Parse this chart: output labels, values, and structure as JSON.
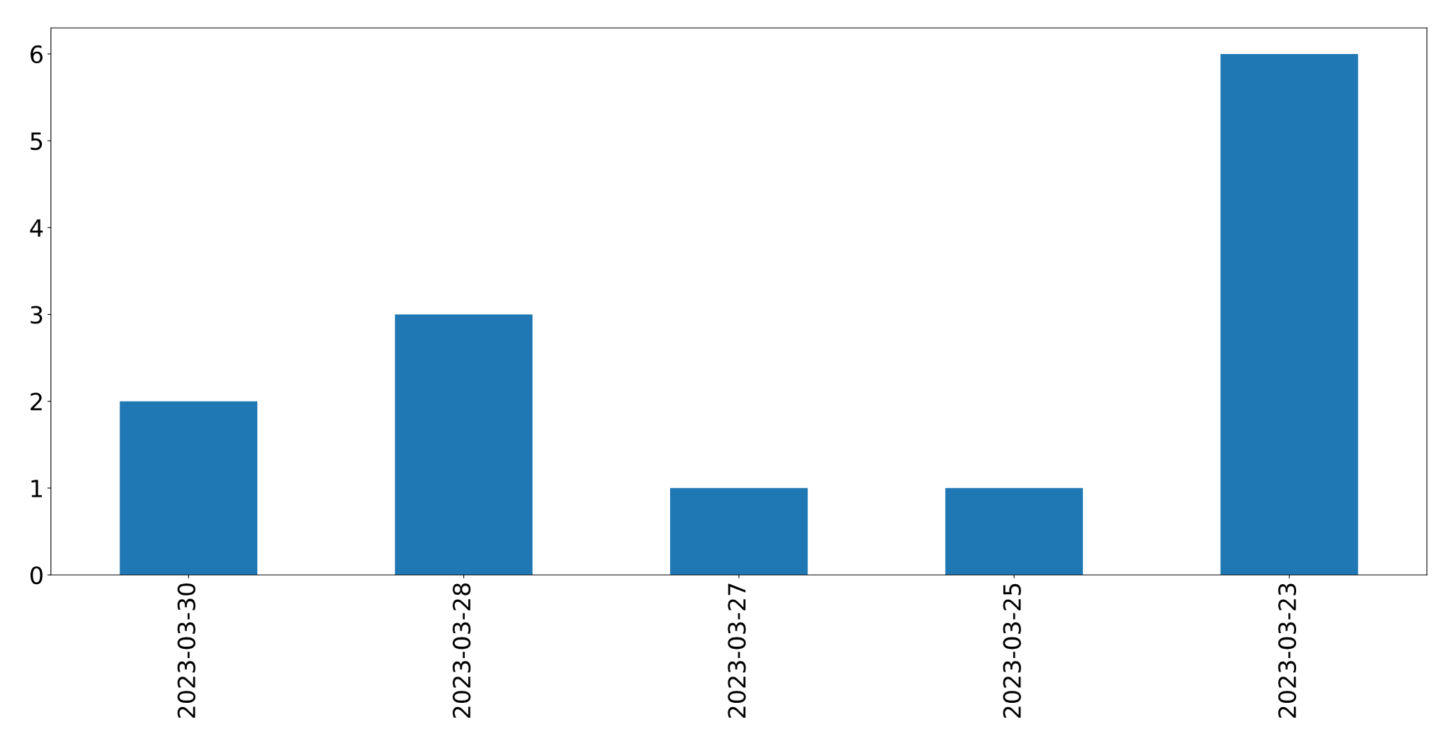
{
  "chart_data": {
    "type": "bar",
    "categories": [
      "2023-03-30",
      "2023-03-28",
      "2023-03-27",
      "2023-03-25",
      "2023-03-23"
    ],
    "values": [
      2,
      3,
      1,
      1,
      6
    ],
    "color": "#1f77b4",
    "ylim": [
      0,
      6.3
    ],
    "yticks": [
      0,
      1,
      2,
      3,
      4,
      5,
      6
    ],
    "grid": false,
    "legend": false
  }
}
